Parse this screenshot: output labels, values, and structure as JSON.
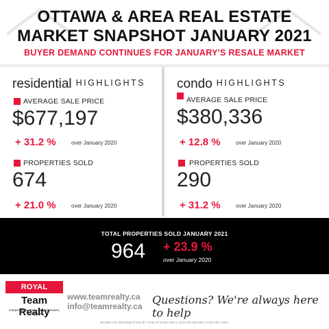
{
  "header": {
    "title_line1": "OTTAWA & AREA REAL ESTATE",
    "title_line2": "MARKET SNAPSHOT JANUARY 2021",
    "subtitle": "BUYER DEMAND CONTINUES FOR JANUARY'S RESALE MARKET"
  },
  "residential": {
    "name": "residential",
    "highlights": "HIGHLIGHTS",
    "avg_label": "AVERAGE SALE PRICE",
    "avg_value": "$677,197",
    "avg_change": "+ 31.2 %",
    "avg_note": "over January 2020",
    "sold_label": "PROPERTIES SOLD",
    "sold_value": "674",
    "sold_change": "+ 21.0 %",
    "sold_note": "over January 2020"
  },
  "condo": {
    "name": "condo",
    "highlights": "HIGHLIGHTS",
    "avg_label": "AVERAGE SALE PRICE",
    "avg_value": "$380,336",
    "avg_change": "+ 12.8 %",
    "avg_note": "over January 2020",
    "sold_label": "PROPERTIES SOLD",
    "sold_value": "290",
    "sold_change": "+ 31.2 %",
    "sold_note": "over January 2020"
  },
  "total": {
    "title": "TOTAL PROPERTIES SOLD JANUARY 2021",
    "value": "964",
    "change": "+ 23.9 %",
    "note": "over January 2020"
  },
  "footer": {
    "logo_line1": "ROYAL LEPAGE",
    "logo_line2": "Team Realty",
    "logo_tagline": "Independently Owned and Operated, Brokerage",
    "website": "www.teamrealty.ca",
    "email": "info@teamrealty.ca",
    "slogan": "Questions? We're always here to help",
    "source": "BASED ON INFORMATION BY THE OTTAWA REAL ESTATE BOARD JANUARY 2021"
  },
  "colors": {
    "accent": "#e4173a",
    "band": "#000000",
    "link_gray": "#8a8a8a"
  }
}
